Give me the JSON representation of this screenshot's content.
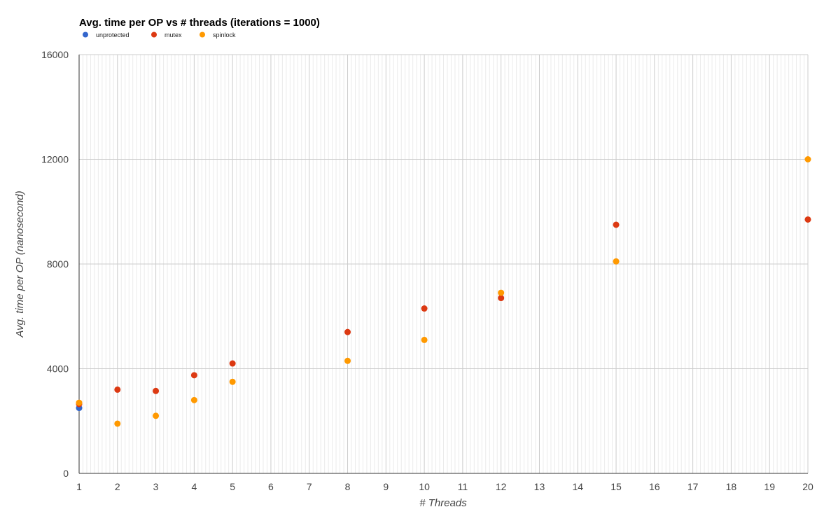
{
  "chart_data": {
    "type": "scatter",
    "title": "Avg. time per OP vs # threads (iterations = 1000)",
    "xlabel": "# Threads",
    "ylabel": "Avg. time per OP (nanosecond)",
    "xlim": [
      1,
      20
    ],
    "ylim": [
      0,
      16000
    ],
    "x_ticks": [
      1,
      2,
      3,
      4,
      5,
      6,
      7,
      8,
      9,
      10,
      11,
      12,
      13,
      14,
      15,
      16,
      17,
      18,
      19,
      20
    ],
    "y_ticks": [
      0,
      4000,
      8000,
      12000,
      16000
    ],
    "grid": true,
    "legend_position": "top-left",
    "series": [
      {
        "name": "unprotected",
        "color": "#3366cc",
        "points": [
          [
            1,
            2500
          ]
        ]
      },
      {
        "name": "mutex",
        "color": "#dc3912",
        "points": [
          [
            1,
            2650
          ],
          [
            2,
            3200
          ],
          [
            3,
            3150
          ],
          [
            4,
            3750
          ],
          [
            5,
            4200
          ],
          [
            8,
            5400
          ],
          [
            10,
            6300
          ],
          [
            12,
            6700
          ],
          [
            15,
            9500
          ],
          [
            20,
            9700
          ]
        ]
      },
      {
        "name": "spinlock",
        "color": "#ff9900",
        "points": [
          [
            1,
            2700
          ],
          [
            2,
            1900
          ],
          [
            3,
            2200
          ],
          [
            4,
            2800
          ],
          [
            5,
            3500
          ],
          [
            8,
            4300
          ],
          [
            10,
            5100
          ],
          [
            12,
            6900
          ],
          [
            15,
            8100
          ],
          [
            20,
            12000
          ]
        ]
      }
    ]
  }
}
